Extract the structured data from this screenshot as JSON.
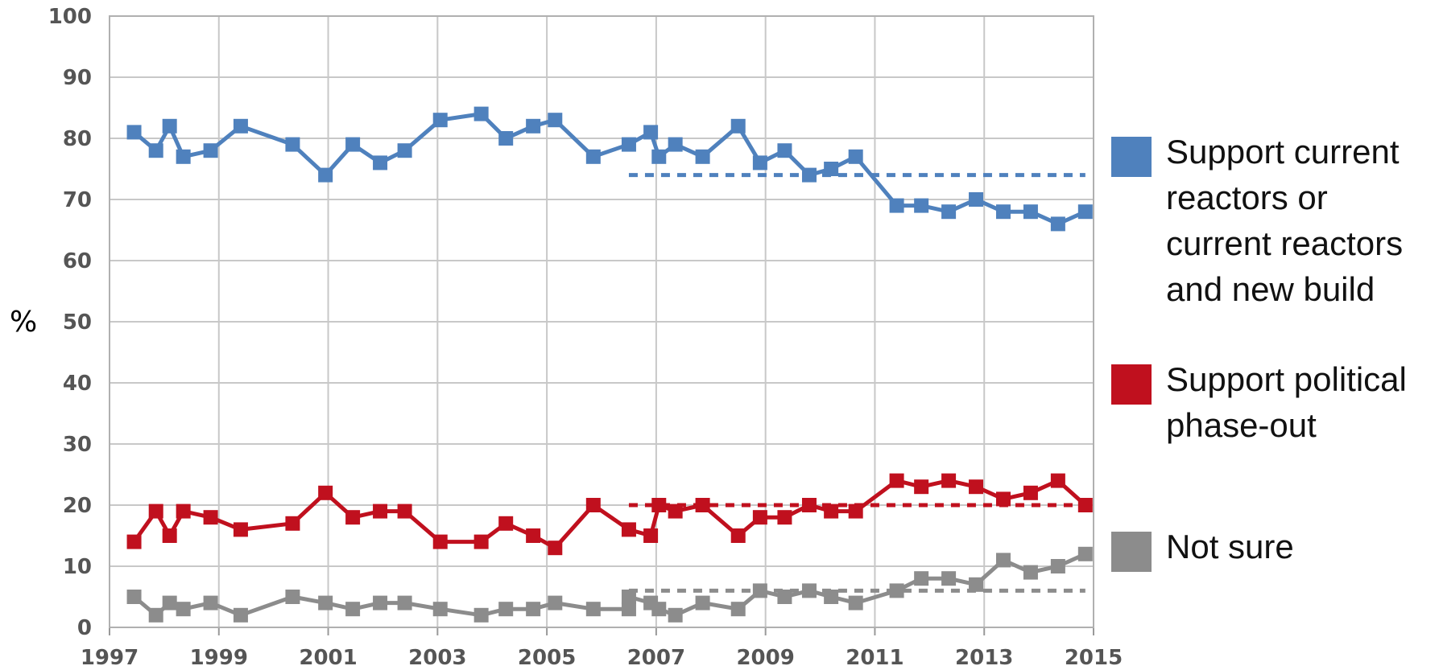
{
  "chart_data": {
    "type": "line",
    "title": "",
    "xlabel": "",
    "ylabel": "%",
    "ylim": [
      0,
      100
    ],
    "xlim": [
      1997,
      2015
    ],
    "y_ticks": [
      "0",
      "10",
      "20",
      "30",
      "40",
      "50",
      "60",
      "70",
      "80",
      "90",
      "100"
    ],
    "x_ticks": [
      "1997",
      "1999",
      "2001",
      "2003",
      "2005",
      "2007",
      "2009",
      "2011",
      "2013",
      "2015"
    ],
    "grid": true,
    "legend_position": "right",
    "series": [
      {
        "name": "Support current reactors or current reactors and new build",
        "color": "#4f81bd",
        "points": [
          [
            1997.45,
            81
          ],
          [
            1997.85,
            78
          ],
          [
            1998.1,
            82
          ],
          [
            1998.35,
            77
          ],
          [
            1998.85,
            78
          ],
          [
            1999.4,
            82
          ],
          [
            2000.35,
            79
          ],
          [
            2000.95,
            74
          ],
          [
            2001.45,
            79
          ],
          [
            2001.95,
            76
          ],
          [
            2002.4,
            78
          ],
          [
            2003.05,
            83
          ],
          [
            2003.8,
            84
          ],
          [
            2004.25,
            80
          ],
          [
            2004.75,
            82
          ],
          [
            2005.15,
            83
          ],
          [
            2005.85,
            77
          ],
          [
            2006.5,
            79
          ],
          [
            2006.9,
            81
          ],
          [
            2007.05,
            77
          ],
          [
            2007.35,
            79
          ],
          [
            2007.85,
            77
          ],
          [
            2008.5,
            82
          ],
          [
            2008.9,
            76
          ],
          [
            2009.35,
            78
          ],
          [
            2009.8,
            74
          ],
          [
            2010.2,
            75
          ],
          [
            2010.65,
            77
          ],
          [
            2011.4,
            69
          ],
          [
            2011.85,
            69
          ],
          [
            2012.35,
            68
          ],
          [
            2012.85,
            70
          ],
          [
            2013.35,
            68
          ],
          [
            2013.85,
            68
          ],
          [
            2014.35,
            66
          ],
          [
            2014.85,
            68
          ]
        ],
        "trend": {
          "from": 2006.5,
          "to": 2014.85,
          "value": 74,
          "color": "#4f81bd"
        }
      },
      {
        "name": "Support political phase-out",
        "color": "#c0101e",
        "points": [
          [
            1997.45,
            14
          ],
          [
            1997.85,
            19
          ],
          [
            1998.1,
            15
          ],
          [
            1998.35,
            19
          ],
          [
            1998.85,
            18
          ],
          [
            1999.4,
            16
          ],
          [
            2000.35,
            17
          ],
          [
            2000.95,
            22
          ],
          [
            2001.45,
            18
          ],
          [
            2001.95,
            19
          ],
          [
            2002.4,
            19
          ],
          [
            2003.05,
            14
          ],
          [
            2003.8,
            14
          ],
          [
            2004.25,
            17
          ],
          [
            2004.75,
            15
          ],
          [
            2005.15,
            13
          ],
          [
            2005.85,
            20
          ],
          [
            2006.5,
            16
          ],
          [
            2006.9,
            15
          ],
          [
            2007.05,
            20
          ],
          [
            2007.35,
            19
          ],
          [
            2007.85,
            20
          ],
          [
            2008.5,
            15
          ],
          [
            2008.9,
            18
          ],
          [
            2009.35,
            18
          ],
          [
            2009.8,
            20
          ],
          [
            2010.2,
            19
          ],
          [
            2010.65,
            19
          ],
          [
            2011.4,
            24
          ],
          [
            2011.85,
            23
          ],
          [
            2012.35,
            24
          ],
          [
            2012.85,
            23
          ],
          [
            2013.35,
            21
          ],
          [
            2013.85,
            22
          ],
          [
            2014.35,
            24
          ],
          [
            2014.85,
            20
          ]
        ],
        "trend": {
          "from": 2006.5,
          "to": 2014.85,
          "value": 20,
          "color": "#c0101e"
        }
      },
      {
        "name": "Not sure",
        "color": "#8c8c8c",
        "points": [
          [
            1997.45,
            5
          ],
          [
            1997.85,
            2
          ],
          [
            1998.1,
            4
          ],
          [
            1998.35,
            3
          ],
          [
            1998.85,
            4
          ],
          [
            1999.4,
            2
          ],
          [
            2000.35,
            5
          ],
          [
            2000.95,
            4
          ],
          [
            2001.45,
            3
          ],
          [
            2001.95,
            4
          ],
          [
            2002.4,
            4
          ],
          [
            2003.05,
            3
          ],
          [
            2003.8,
            2
          ],
          [
            2004.25,
            3
          ],
          [
            2004.75,
            3
          ],
          [
            2005.15,
            4
          ],
          [
            2005.85,
            3
          ],
          [
            2006.5,
            3
          ],
          [
            2006.5,
            5
          ],
          [
            2006.9,
            4
          ],
          [
            2007.05,
            3
          ],
          [
            2007.35,
            2
          ],
          [
            2007.85,
            4
          ],
          [
            2008.5,
            3
          ],
          [
            2008.9,
            6
          ],
          [
            2009.35,
            5
          ],
          [
            2009.8,
            6
          ],
          [
            2010.2,
            5
          ],
          [
            2010.65,
            4
          ],
          [
            2011.4,
            6
          ],
          [
            2011.85,
            8
          ],
          [
            2012.35,
            8
          ],
          [
            2012.85,
            7
          ],
          [
            2013.35,
            11
          ],
          [
            2013.85,
            9
          ],
          [
            2014.35,
            10
          ],
          [
            2014.85,
            12
          ]
        ],
        "trend": {
          "from": 2006.5,
          "to": 2014.85,
          "value": 6,
          "color": "#8c8c8c"
        }
      }
    ]
  },
  "legend": {
    "items": [
      {
        "label": "Support current reactors or current reactors and new build",
        "color": "#4f81bd"
      },
      {
        "label": "Support political phase-out",
        "color": "#c0101e"
      },
      {
        "label": "Not sure",
        "color": "#8c8c8c"
      }
    ]
  }
}
